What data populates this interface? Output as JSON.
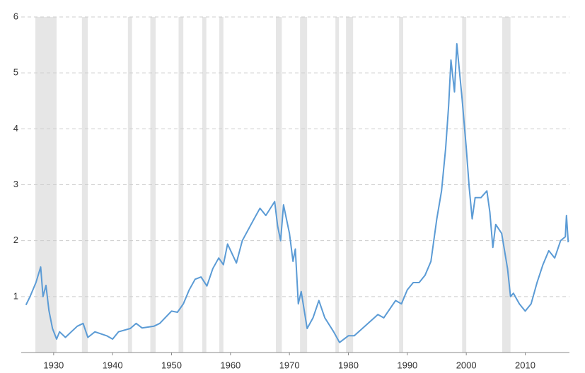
{
  "chart_data": {
    "type": "line",
    "x": [
      1925.3,
      1926,
      1927,
      1927.8,
      1928.2,
      1928.7,
      1929.2,
      1929.8,
      1930.5,
      1931,
      1932,
      1933,
      1934,
      1935,
      1935.8,
      1937,
      1939,
      1940,
      1941,
      1943,
      1944,
      1945,
      1947,
      1948,
      1950,
      1951,
      1952,
      1953,
      1954,
      1955,
      1956,
      1957,
      1958,
      1958.8,
      1959.5,
      1961,
      1962,
      1964,
      1965,
      1966,
      1967.5,
      1968,
      1968.5,
      1969,
      1970,
      1970.6,
      1971,
      1971.5,
      1972,
      1973,
      1974,
      1975,
      1976,
      1977.5,
      1978.5,
      1980,
      1981,
      1983,
      1985,
      1986,
      1988,
      1989,
      1990,
      1991,
      1992,
      1993,
      1994,
      1995,
      1995.8,
      1996.5,
      1997,
      1997.4,
      1998,
      1998.4,
      1999.3,
      1999.8,
      2000,
      2000.5,
      2001,
      2001.5,
      2002.5,
      2003.5,
      2004,
      2004.5,
      2005,
      2006,
      2007,
      2007.5,
      2008,
      2009,
      2010,
      2011,
      2012,
      2013,
      2014,
      2015,
      2016,
      2016.8,
      2017,
      2017.3
    ],
    "series": [
      {
        "color": "#5b9bd5",
        "values": [
          0.85,
          1.0,
          1.25,
          1.53,
          1.0,
          1.2,
          0.75,
          0.43,
          0.24,
          0.37,
          0.27,
          0.37,
          0.47,
          0.52,
          0.27,
          0.37,
          0.3,
          0.24,
          0.37,
          0.43,
          0.52,
          0.44,
          0.47,
          0.52,
          0.74,
          0.72,
          0.87,
          1.12,
          1.31,
          1.35,
          1.19,
          1.5,
          1.69,
          1.57,
          1.94,
          1.6,
          2.0,
          2.39,
          2.58,
          2.45,
          2.7,
          2.26,
          2.0,
          2.64,
          2.13,
          1.63,
          1.85,
          0.87,
          1.09,
          0.43,
          0.62,
          0.93,
          0.62,
          0.37,
          0.18,
          0.3,
          0.3,
          0.49,
          0.68,
          0.62,
          0.93,
          0.87,
          1.12,
          1.25,
          1.25,
          1.38,
          1.63,
          2.39,
          2.89,
          3.65,
          4.41,
          5.23,
          4.66,
          5.52,
          4.53,
          3.9,
          3.65,
          2.95,
          2.39,
          2.77,
          2.77,
          2.89,
          2.51,
          1.88,
          2.29,
          2.13,
          1.5,
          1.0,
          1.06,
          0.87,
          0.74,
          0.87,
          1.25,
          1.57,
          1.82,
          1.69,
          2.0,
          2.07,
          2.45,
          1.97
        ]
      }
    ],
    "recessions": [
      [
        1926.9,
        1930.5
      ],
      [
        1934.8,
        1935.8
      ],
      [
        1942.6,
        1943.3
      ],
      [
        1946.4,
        1947.3
      ],
      [
        1951.2,
        1952.0
      ],
      [
        1955.2,
        1955.9
      ],
      [
        1958.1,
        1958.8
      ],
      [
        1967.7,
        1968.7
      ],
      [
        1971.8,
        1973.0
      ],
      [
        1977.8,
        1978.4
      ],
      [
        1979.6,
        1980.8
      ],
      [
        1988.6,
        1989.3
      ],
      [
        1999.3,
        2000.0
      ],
      [
        2006.1,
        2007.5
      ]
    ],
    "recession_color": "#e6e6e6",
    "xlim": [
      1924.5,
      2017.5
    ],
    "xticks": [
      1930,
      1940,
      1950,
      1960,
      1970,
      1980,
      1990,
      2000,
      2010
    ],
    "ylim": [
      0,
      6
    ],
    "yticks": [
      1,
      2,
      3,
      4,
      5,
      6
    ],
    "grid": true
  }
}
